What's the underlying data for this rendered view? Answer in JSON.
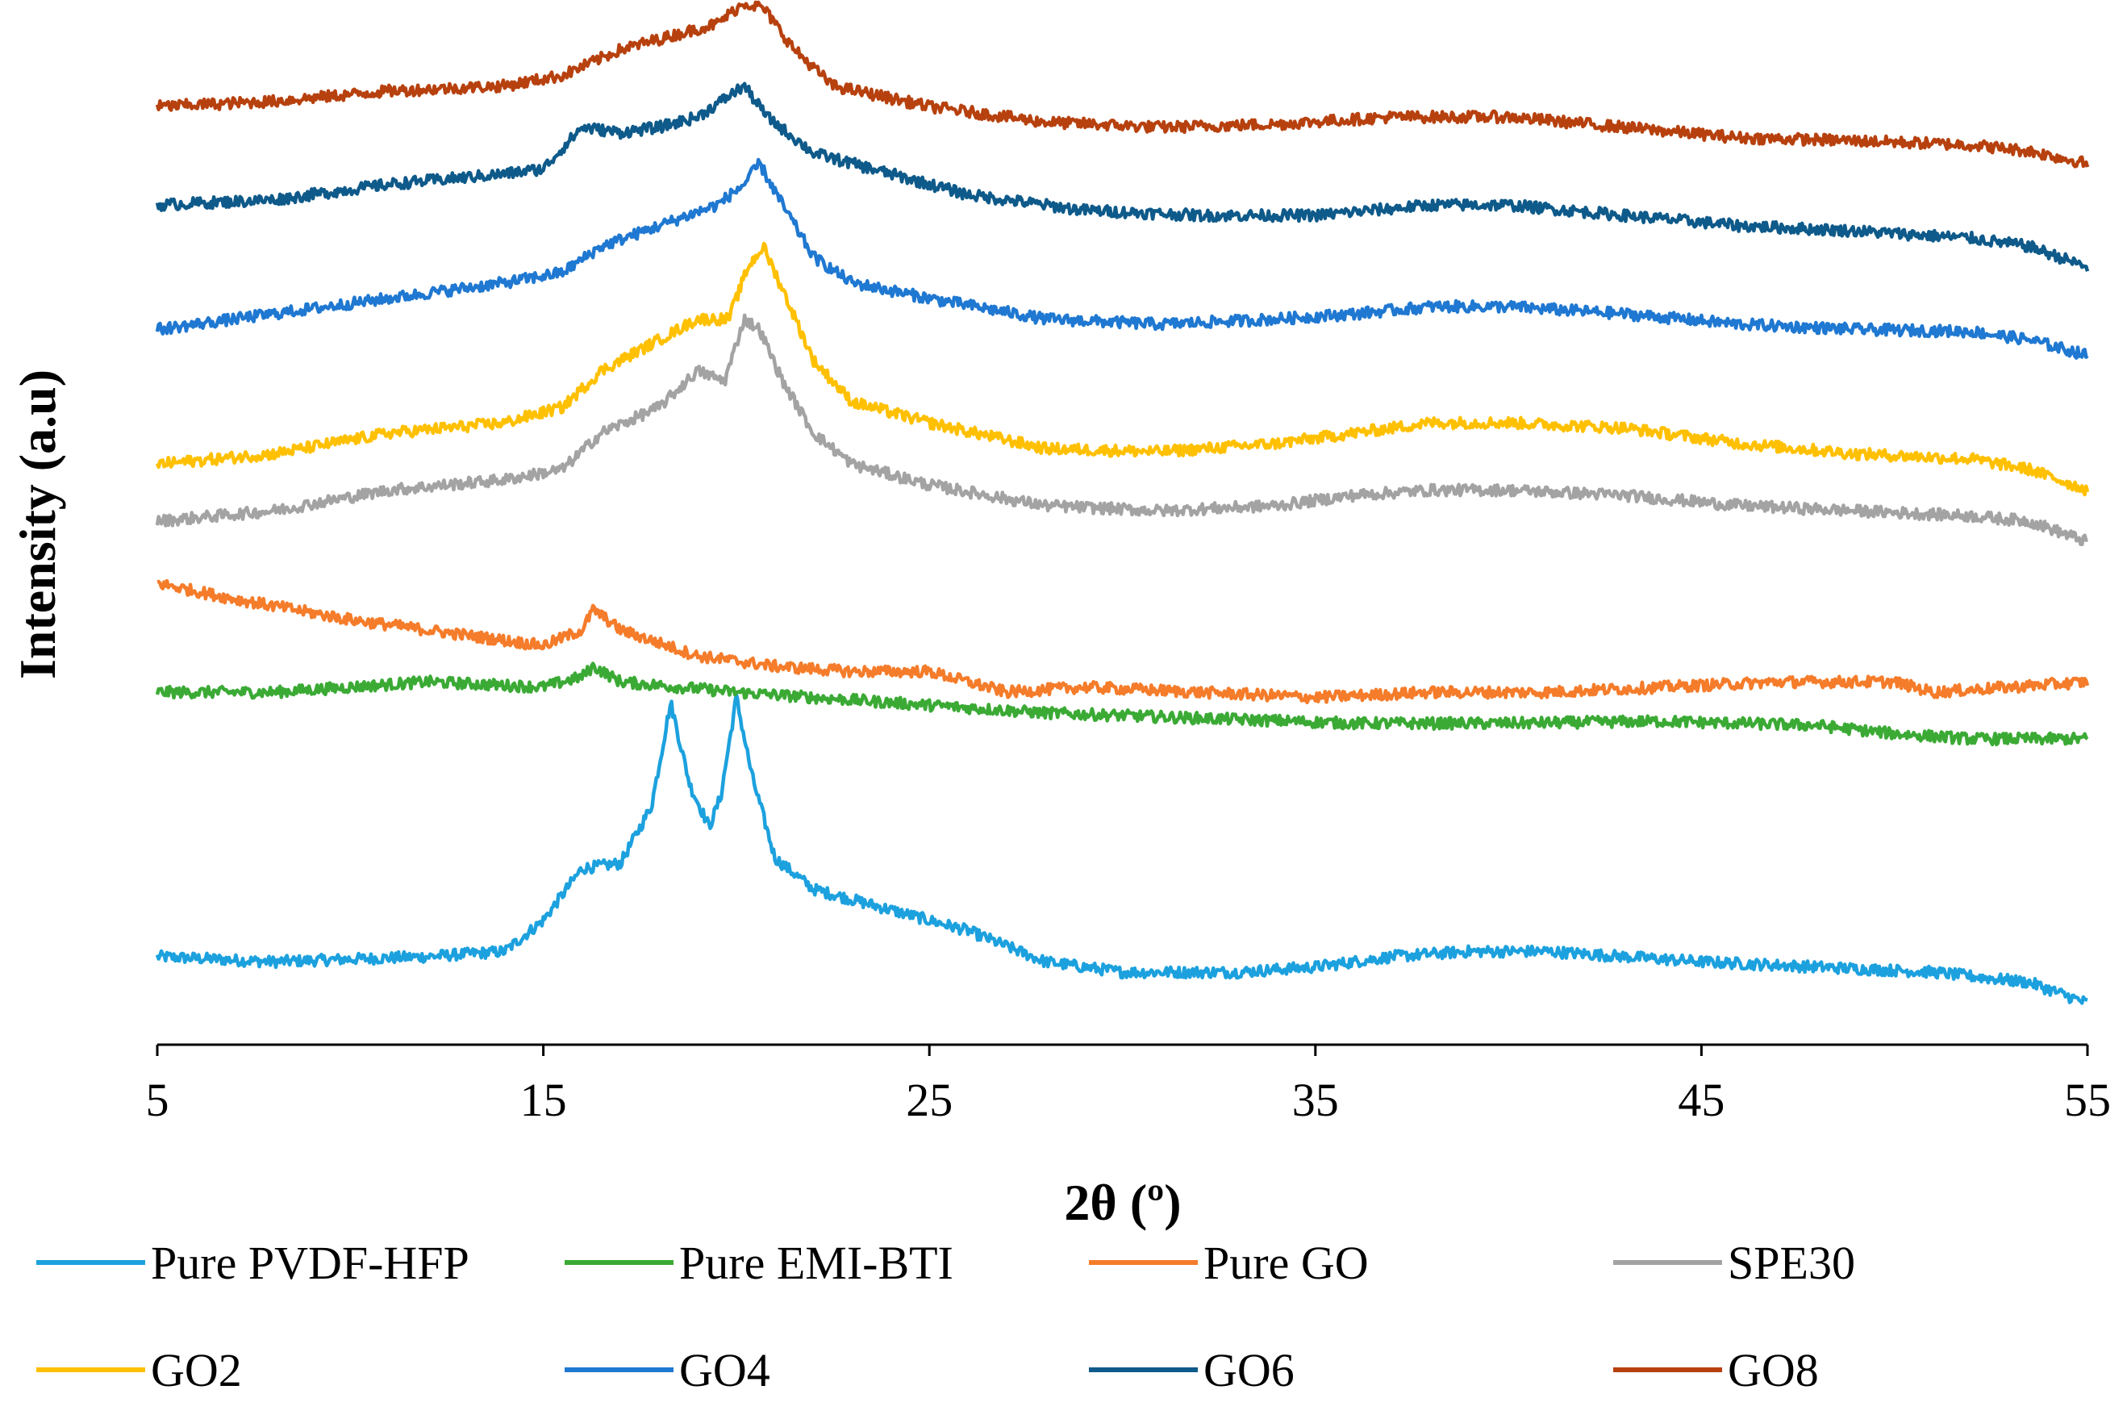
{
  "chart_data": {
    "type": "line",
    "title": "",
    "xlabel": "2θ (º)",
    "ylabel": "Intensity (a.u)",
    "xlim": [
      5,
      55
    ],
    "xticks": [
      "5",
      "15",
      "25",
      "35",
      "45",
      "55"
    ],
    "legend_position": "bottom",
    "series": [
      {
        "name": "Pure PVDF-HFP",
        "color": "#1CA1DE",
        "points": [
          [
            5,
            0.085
          ],
          [
            8,
            0.08
          ],
          [
            12,
            0.085
          ],
          [
            14,
            0.09
          ],
          [
            15,
            0.12
          ],
          [
            16,
            0.17
          ],
          [
            17,
            0.175
          ],
          [
            17.8,
            0.23
          ],
          [
            18.3,
            0.33
          ],
          [
            18.8,
            0.25
          ],
          [
            19.3,
            0.21
          ],
          [
            19.6,
            0.24
          ],
          [
            20,
            0.335
          ],
          [
            20.4,
            0.26
          ],
          [
            21,
            0.18
          ],
          [
            22,
            0.15
          ],
          [
            24,
            0.13
          ],
          [
            26,
            0.11
          ],
          [
            28,
            0.08
          ],
          [
            30,
            0.07
          ],
          [
            33,
            0.07
          ],
          [
            35,
            0.075
          ],
          [
            37,
            0.085
          ],
          [
            39,
            0.09
          ],
          [
            41,
            0.09
          ],
          [
            43,
            0.085
          ],
          [
            45,
            0.08
          ],
          [
            48,
            0.075
          ],
          [
            51,
            0.07
          ],
          [
            53.5,
            0.06
          ],
          [
            55,
            0.04
          ]
        ]
      },
      {
        "name": "Pure EMI-BTI",
        "color": "#3BAA35",
        "points": [
          [
            5,
            0.34
          ],
          [
            8,
            0.34
          ],
          [
            12,
            0.35
          ],
          [
            15,
            0.345
          ],
          [
            16,
            0.355
          ],
          [
            16.3,
            0.365
          ],
          [
            17,
            0.35
          ],
          [
            20,
            0.34
          ],
          [
            24,
            0.33
          ],
          [
            28,
            0.32
          ],
          [
            32,
            0.315
          ],
          [
            36,
            0.31
          ],
          [
            40,
            0.31
          ],
          [
            44,
            0.312
          ],
          [
            48,
            0.308
          ],
          [
            50,
            0.3
          ],
          [
            52,
            0.295
          ],
          [
            55,
            0.295
          ]
        ]
      },
      {
        "name": "Pure GO",
        "color": "#F57C2A",
        "points": [
          [
            5,
            0.445
          ],
          [
            7,
            0.43
          ],
          [
            10,
            0.41
          ],
          [
            13,
            0.395
          ],
          [
            15,
            0.385
          ],
          [
            16,
            0.4
          ],
          [
            16.3,
            0.42
          ],
          [
            17,
            0.4
          ],
          [
            19,
            0.375
          ],
          [
            21,
            0.365
          ],
          [
            23,
            0.36
          ],
          [
            25,
            0.36
          ],
          [
            26,
            0.35
          ],
          [
            27,
            0.34
          ],
          [
            29,
            0.345
          ],
          [
            32,
            0.34
          ],
          [
            35,
            0.335
          ],
          [
            38,
            0.34
          ],
          [
            41,
            0.34
          ],
          [
            44,
            0.345
          ],
          [
            47,
            0.35
          ],
          [
            50,
            0.35
          ],
          [
            51,
            0.34
          ],
          [
            53,
            0.345
          ],
          [
            55,
            0.35
          ]
        ]
      },
      {
        "name": "SPE30",
        "color": "#A3A3A3",
        "points": [
          [
            5,
            0.505
          ],
          [
            8,
            0.515
          ],
          [
            11,
            0.535
          ],
          [
            14,
            0.545
          ],
          [
            15.5,
            0.555
          ],
          [
            16.5,
            0.59
          ],
          [
            18,
            0.615
          ],
          [
            19,
            0.65
          ],
          [
            19.7,
            0.64
          ],
          [
            20.2,
            0.7
          ],
          [
            20.6,
            0.69
          ],
          [
            21.2,
            0.64
          ],
          [
            22,
            0.59
          ],
          [
            23,
            0.56
          ],
          [
            25,
            0.54
          ],
          [
            28,
            0.52
          ],
          [
            31,
            0.515
          ],
          [
            34,
            0.52
          ],
          [
            36,
            0.53
          ],
          [
            38,
            0.535
          ],
          [
            40,
            0.535
          ],
          [
            43,
            0.53
          ],
          [
            46,
            0.52
          ],
          [
            49,
            0.515
          ],
          [
            52,
            0.51
          ],
          [
            53.5,
            0.505
          ],
          [
            55,
            0.485
          ]
        ]
      },
      {
        "name": "GO2",
        "color": "#FFC000",
        "points": [
          [
            5,
            0.56
          ],
          [
            8,
            0.57
          ],
          [
            11,
            0.59
          ],
          [
            14,
            0.6
          ],
          [
            15.5,
            0.615
          ],
          [
            16.5,
            0.65
          ],
          [
            18,
            0.68
          ],
          [
            19,
            0.7
          ],
          [
            19.8,
            0.7
          ],
          [
            20.3,
            0.75
          ],
          [
            20.7,
            0.77
          ],
          [
            21.3,
            0.72
          ],
          [
            22,
            0.66
          ],
          [
            23,
            0.62
          ],
          [
            25,
            0.6
          ],
          [
            28,
            0.575
          ],
          [
            31,
            0.572
          ],
          [
            34,
            0.58
          ],
          [
            36,
            0.59
          ],
          [
            38,
            0.6
          ],
          [
            40,
            0.6
          ],
          [
            43,
            0.595
          ],
          [
            46,
            0.58
          ],
          [
            49,
            0.57
          ],
          [
            52,
            0.565
          ],
          [
            53.5,
            0.555
          ],
          [
            55,
            0.535
          ]
        ]
      },
      {
        "name": "GO4",
        "color": "#1F78D1",
        "points": [
          [
            5,
            0.69
          ],
          [
            8,
            0.705
          ],
          [
            11,
            0.72
          ],
          [
            14,
            0.735
          ],
          [
            15.5,
            0.745
          ],
          [
            16.5,
            0.77
          ],
          [
            18,
            0.79
          ],
          [
            19.5,
            0.81
          ],
          [
            20.2,
            0.83
          ],
          [
            20.6,
            0.85
          ],
          [
            21.2,
            0.81
          ],
          [
            22,
            0.76
          ],
          [
            23,
            0.735
          ],
          [
            25,
            0.72
          ],
          [
            28,
            0.7
          ],
          [
            31,
            0.695
          ],
          [
            34,
            0.7
          ],
          [
            36,
            0.705
          ],
          [
            38,
            0.712
          ],
          [
            40,
            0.712
          ],
          [
            43,
            0.705
          ],
          [
            46,
            0.695
          ],
          [
            49,
            0.69
          ],
          [
            52,
            0.688
          ],
          [
            53.5,
            0.68
          ],
          [
            55,
            0.665
          ]
        ]
      },
      {
        "name": "GO6",
        "color": "#0E5A8A",
        "points": [
          [
            5,
            0.81
          ],
          [
            8,
            0.815
          ],
          [
            11,
            0.83
          ],
          [
            14,
            0.84
          ],
          [
            15,
            0.845
          ],
          [
            16,
            0.885
          ],
          [
            17,
            0.88
          ],
          [
            18,
            0.885
          ],
          [
            19,
            0.895
          ],
          [
            19.6,
            0.91
          ],
          [
            20.2,
            0.925
          ],
          [
            20.8,
            0.895
          ],
          [
            22,
            0.86
          ],
          [
            24,
            0.84
          ],
          [
            26,
            0.82
          ],
          [
            29,
            0.805
          ],
          [
            32,
            0.8
          ],
          [
            35,
            0.8
          ],
          [
            38,
            0.81
          ],
          [
            40,
            0.81
          ],
          [
            43,
            0.8
          ],
          [
            46,
            0.79
          ],
          [
            49,
            0.785
          ],
          [
            52,
            0.778
          ],
          [
            53.5,
            0.77
          ],
          [
            55,
            0.75
          ]
        ]
      },
      {
        "name": "GO8",
        "color": "#B7410E",
        "points": [
          [
            5,
            0.905
          ],
          [
            8,
            0.91
          ],
          [
            11,
            0.92
          ],
          [
            14,
            0.925
          ],
          [
            15.5,
            0.935
          ],
          [
            17,
            0.96
          ],
          [
            18.5,
            0.975
          ],
          [
            19.5,
            0.985
          ],
          [
            20.2,
            1.005
          ],
          [
            20.7,
            1.0
          ],
          [
            21.5,
            0.96
          ],
          [
            22.5,
            0.925
          ],
          [
            25,
            0.905
          ],
          [
            28,
            0.89
          ],
          [
            31,
            0.885
          ],
          [
            34,
            0.888
          ],
          [
            37,
            0.895
          ],
          [
            40,
            0.895
          ],
          [
            43,
            0.885
          ],
          [
            46,
            0.875
          ],
          [
            49,
            0.872
          ],
          [
            52,
            0.868
          ],
          [
            53.5,
            0.862
          ],
          [
            55,
            0.85
          ]
        ]
      }
    ]
  }
}
